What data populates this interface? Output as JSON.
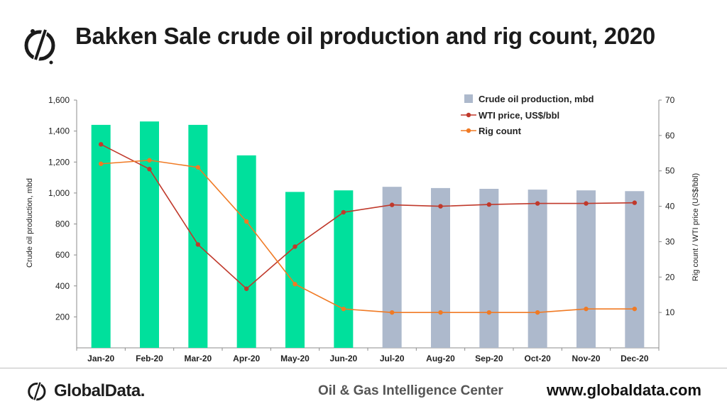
{
  "header": {
    "title": "Bakken Sale crude oil production and rig count, 2020",
    "logo_icon": "globaldata-logo-icon"
  },
  "footer": {
    "brand": "GlobalData.",
    "center": "Oil & Gas Intelligence Center",
    "url": "www.globaldata.com"
  },
  "colors": {
    "actual_bar": "#00e09c",
    "forecast_bar": "#adb9cc",
    "wti_line": "#c0392b",
    "rig_line": "#f07a24"
  },
  "chart_data": {
    "type": "bar+line",
    "categories": [
      "Jan-20",
      "Feb-20",
      "Mar-20",
      "Apr-20",
      "May-20",
      "Jun-20",
      "Jul-20",
      "Aug-20",
      "Sep-20",
      "Oct-20",
      "Nov-20",
      "Dec-20"
    ],
    "ylabel_left": "Crude oil production, mbd",
    "ylabel_right": "Rig count  /  WTI price (US$/bbl)",
    "ylim_left": [
      0,
      1600
    ],
    "ylim_right": [
      0,
      70
    ],
    "yticks_left": [
      "200",
      "400",
      "600",
      "800",
      "1,000",
      "1,200",
      "1,400",
      "1,600"
    ],
    "yticks_right": [
      "10",
      "20",
      "30",
      "40",
      "50",
      "60",
      "70"
    ],
    "series": [
      {
        "name": "Crude oil production, mbd",
        "type": "bar",
        "axis": "left",
        "values": [
          1440,
          1462,
          1440,
          1243,
          1007,
          1017,
          1040,
          1032,
          1027,
          1022,
          1017,
          1012
        ],
        "actual_count": 6
      },
      {
        "name": "WTI price, US$/bbl",
        "type": "line",
        "axis": "right",
        "values": [
          57.5,
          50.5,
          29.2,
          16.7,
          28.6,
          38.3,
          40.4,
          40.0,
          40.5,
          40.8,
          40.8,
          41.0
        ]
      },
      {
        "name": "Rig count",
        "type": "line",
        "axis": "right",
        "values": [
          52.0,
          53.0,
          51.0,
          35.7,
          18.0,
          11.0,
          10.0,
          10.0,
          10.0,
          10.0,
          11.0,
          11.0
        ]
      }
    ],
    "legend_position": "top-right",
    "grid": false
  }
}
